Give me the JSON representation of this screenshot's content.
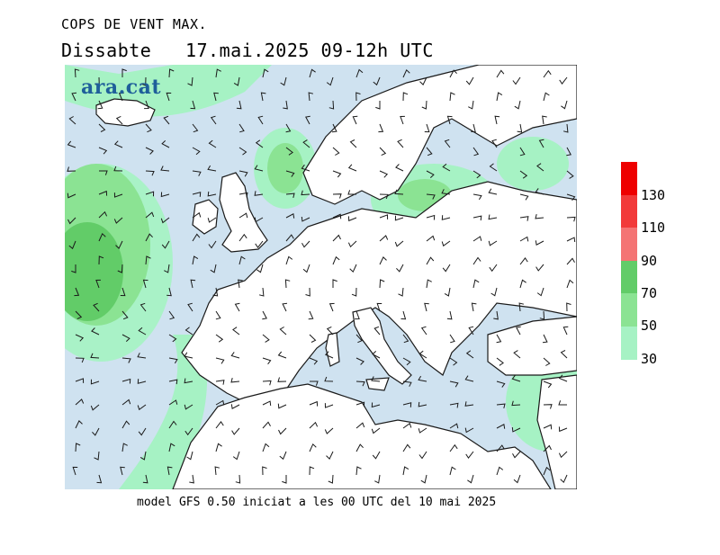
{
  "header": {
    "title": "COPS DE VENT MAX.",
    "subtitle": "Dissabte   17.mai.2025 09-12h UTC"
  },
  "logo": {
    "text": "ara.cat",
    "color": "#1f5f9a"
  },
  "footer": {
    "text": "model GFS 0.50 iniciat a les 00 UTC del 10 mai 2025"
  },
  "map": {
    "sea_color": "#cfe2f0",
    "land_color": "#ffffff",
    "coast_color": "#1a1a1a",
    "barb_color": "#1a1a1a"
  },
  "legend": {
    "labels": [
      "30",
      "50",
      "70",
      "90",
      "110",
      "130"
    ],
    "bins": [
      {
        "from": 30,
        "to": 50,
        "color": "#a6f2c4"
      },
      {
        "from": 50,
        "to": 70,
        "color": "#8be393"
      },
      {
        "from": 70,
        "to": 90,
        "color": "#62cc68"
      },
      {
        "from": 90,
        "to": 110,
        "color": "#f47474"
      },
      {
        "from": 110,
        "to": 130,
        "color": "#f23a3a"
      },
      {
        "from": 130,
        "to": 150,
        "color": "#ee0000"
      }
    ]
  }
}
